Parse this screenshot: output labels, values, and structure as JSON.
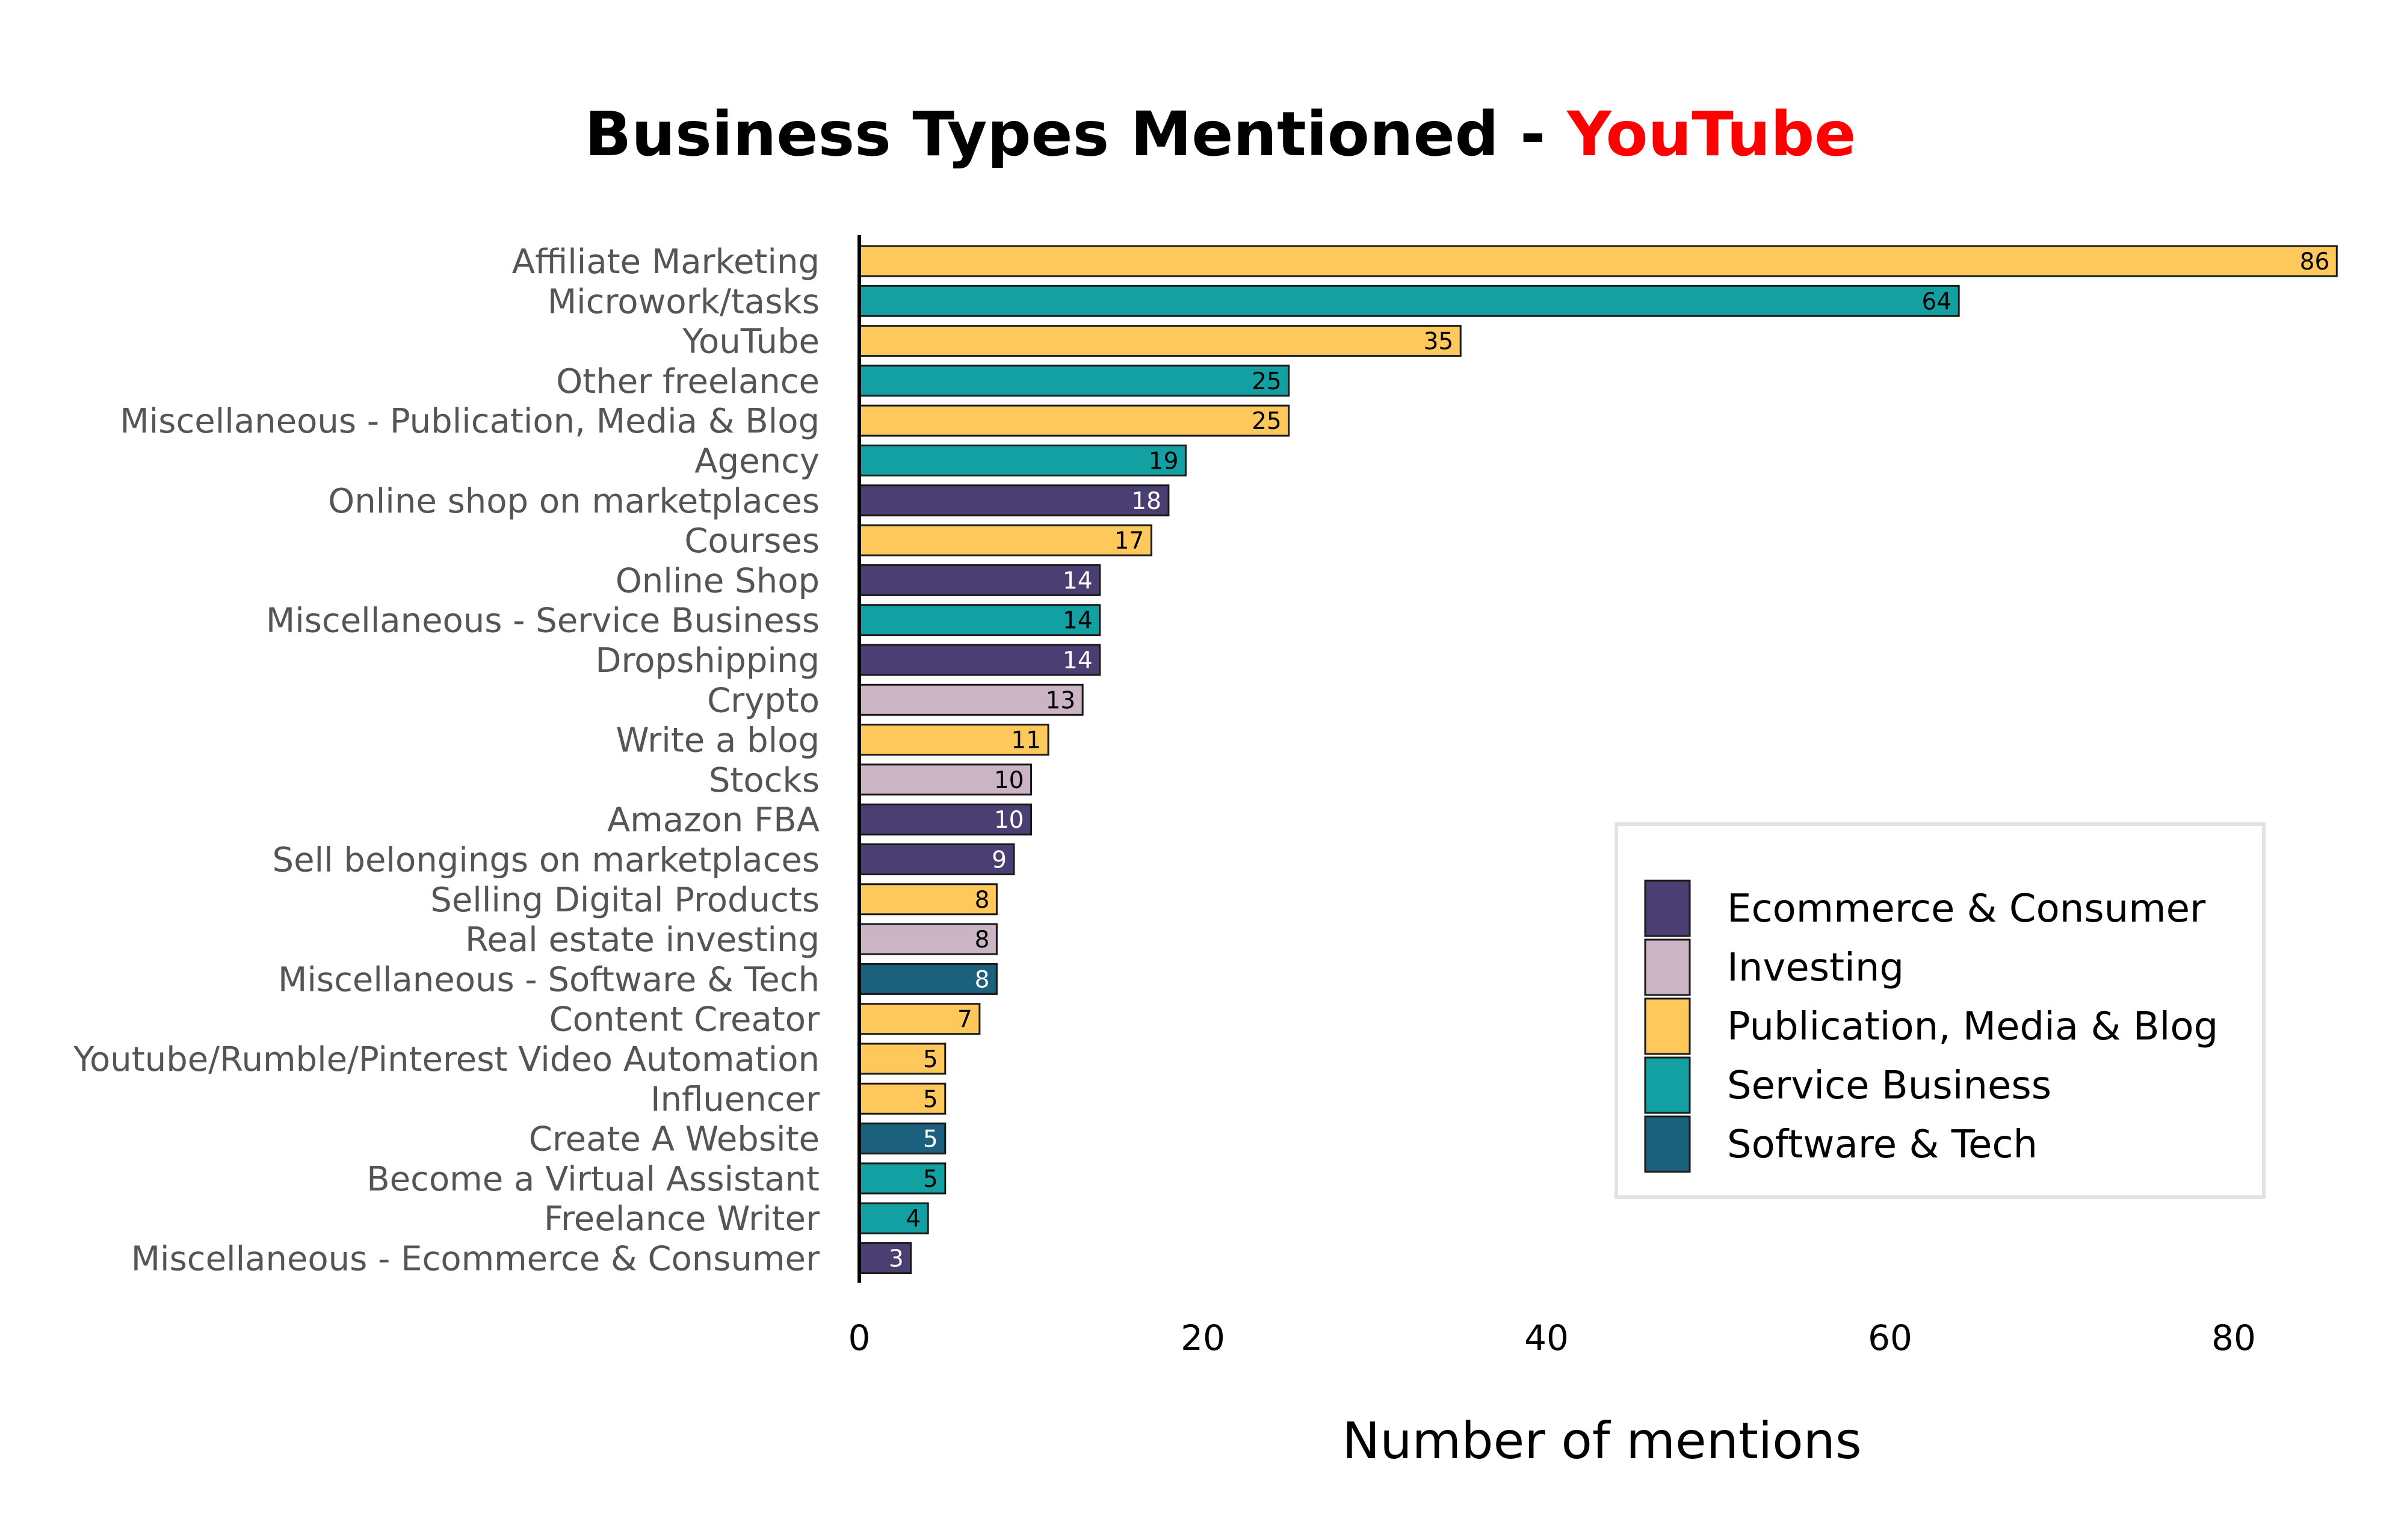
{
  "chart_data": {
    "type": "bar",
    "orientation": "horizontal",
    "title": "Business Types Mentioned - ",
    "title_highlight": "YouTube",
    "title_highlight_color": "#ff0000",
    "xlabel": "Number of mentions",
    "ylabel": "",
    "xlim": [
      0,
      86
    ],
    "xticks": [
      0,
      20,
      40,
      60,
      80
    ],
    "grid": false,
    "legend_position": "bottom-right",
    "groups": [
      {
        "name": "Ecommerce & Consumer",
        "color": "#4b3e73"
      },
      {
        "name": "Investing",
        "color": "#cbb4c4"
      },
      {
        "name": "Publication, Media & Blog",
        "color": "#ffc85a"
      },
      {
        "name": "Service Business",
        "color": "#13a0a2"
      },
      {
        "name": "Software & Tech",
        "color": "#1b607c"
      }
    ],
    "bars": [
      {
        "label": "Affiliate Marketing",
        "value": 86,
        "group": "Publication, Media & Blog"
      },
      {
        "label": "Microwork/tasks",
        "value": 64,
        "group": "Service Business"
      },
      {
        "label": "YouTube",
        "value": 35,
        "group": "Publication, Media & Blog"
      },
      {
        "label": "Other freelance",
        "value": 25,
        "group": "Service Business"
      },
      {
        "label": "Miscellaneous - Publication, Media & Blog",
        "value": 25,
        "group": "Publication, Media & Blog"
      },
      {
        "label": "Agency",
        "value": 19,
        "group": "Service Business"
      },
      {
        "label": "Online shop on marketplaces",
        "value": 18,
        "group": "Ecommerce & Consumer"
      },
      {
        "label": "Courses",
        "value": 17,
        "group": "Publication, Media & Blog"
      },
      {
        "label": "Online Shop",
        "value": 14,
        "group": "Ecommerce & Consumer"
      },
      {
        "label": "Miscellaneous - Service Business",
        "value": 14,
        "group": "Service Business"
      },
      {
        "label": "Dropshipping",
        "value": 14,
        "group": "Ecommerce & Consumer"
      },
      {
        "label": "Crypto",
        "value": 13,
        "group": "Investing"
      },
      {
        "label": "Write a blog",
        "value": 11,
        "group": "Publication, Media & Blog"
      },
      {
        "label": "Stocks",
        "value": 10,
        "group": "Investing"
      },
      {
        "label": "Amazon FBA",
        "value": 10,
        "group": "Ecommerce & Consumer"
      },
      {
        "label": "Sell belongings on marketplaces",
        "value": 9,
        "group": "Ecommerce & Consumer"
      },
      {
        "label": "Selling Digital Products",
        "value": 8,
        "group": "Publication, Media & Blog"
      },
      {
        "label": "Real estate investing",
        "value": 8,
        "group": "Investing"
      },
      {
        "label": "Miscellaneous - Software & Tech",
        "value": 8,
        "group": "Software & Tech"
      },
      {
        "label": "Content Creator",
        "value": 7,
        "group": "Publication, Media & Blog"
      },
      {
        "label": "Youtube/Rumble/Pinterest Video Automation",
        "value": 5,
        "group": "Publication, Media & Blog"
      },
      {
        "label": "Influencer",
        "value": 5,
        "group": "Publication, Media & Blog"
      },
      {
        "label": "Create A Website",
        "value": 5,
        "group": "Software & Tech"
      },
      {
        "label": "Become a Virtual Assistant",
        "value": 5,
        "group": "Service Business"
      },
      {
        "label": "Freelance Writer",
        "value": 4,
        "group": "Service Business"
      },
      {
        "label": "Miscellaneous - Ecommerce & Consumer",
        "value": 3,
        "group": "Ecommerce & Consumer"
      }
    ]
  }
}
